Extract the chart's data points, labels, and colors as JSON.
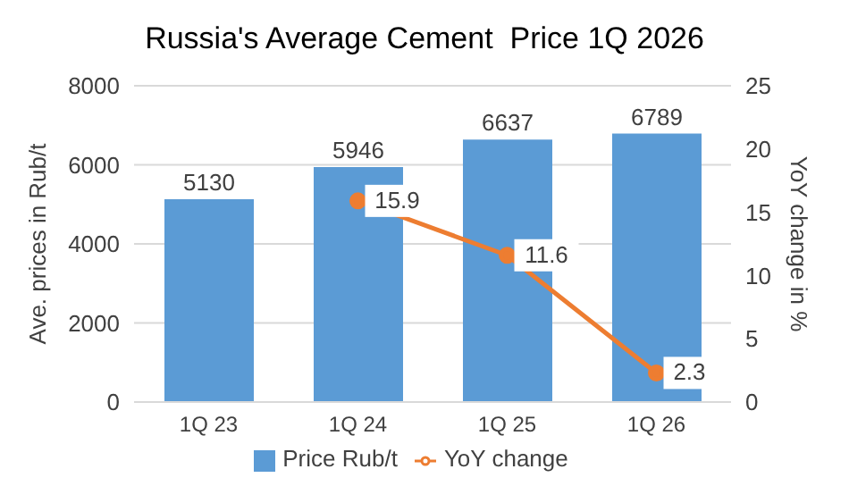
{
  "chart_data": {
    "type": "bar",
    "title": "Russia's Average Cement  Price 1Q 2026",
    "ylabel": "Ave. prices in Rub/t",
    "y2label": "YoY change in %",
    "categories": [
      "1Q 23",
      "1Q 24",
      "1Q 25",
      "1Q 26"
    ],
    "series": [
      {
        "name": "Price Rub/t",
        "color": "#5b9bd5",
        "values": [
          5130,
          5946,
          6637,
          6789
        ]
      },
      {
        "name": "YoY change",
        "type": "line",
        "axis": "y2",
        "color": "#ed7d31",
        "values": [
          null,
          15.9,
          11.6,
          2.3
        ]
      }
    ],
    "ylim": [
      0,
      8000
    ],
    "yticks": [
      0,
      2000,
      4000,
      6000,
      8000
    ],
    "y2lim": [
      0,
      25
    ],
    "y2ticks": [
      0,
      5,
      10,
      15,
      20,
      25
    ],
    "grid": "y",
    "legend": "bottom",
    "marker": "circle",
    "line_style": "solid",
    "data_labels": true
  }
}
